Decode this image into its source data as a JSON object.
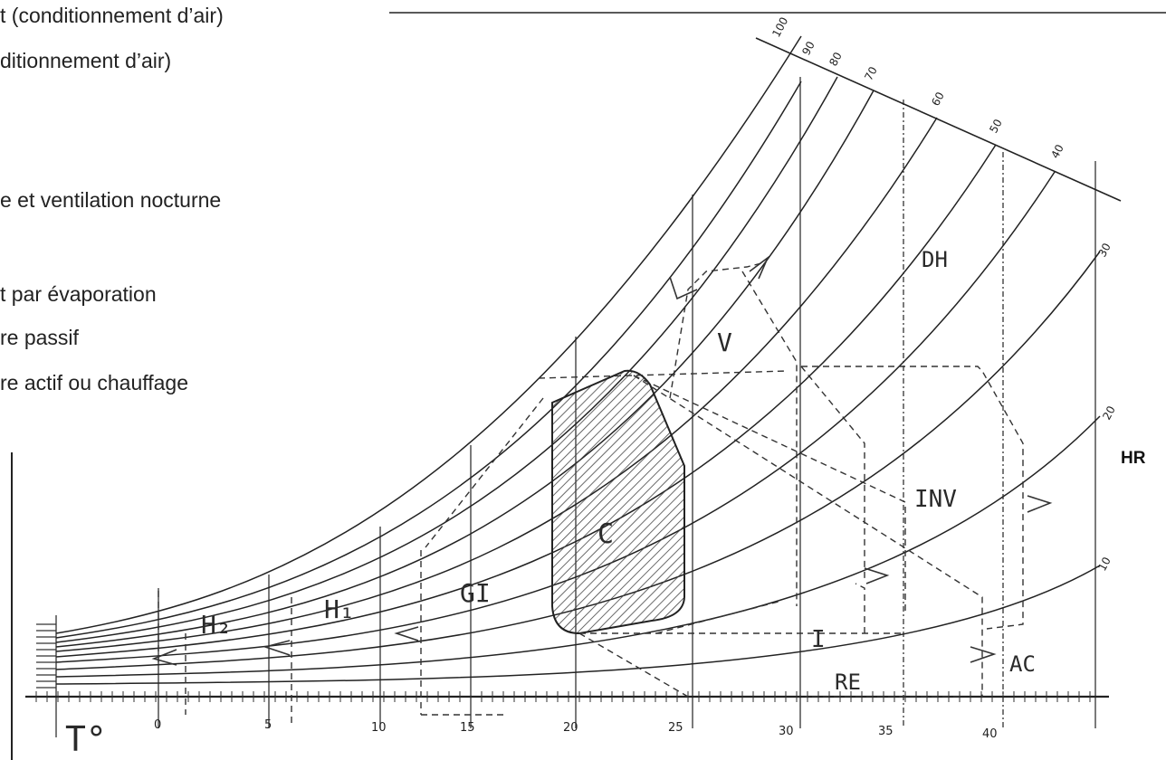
{
  "legend": [
    "t (conditionnement d’air)",
    "ditionnement d’air)",
    "e et ventilation nocturne",
    "t par évaporation",
    "re passif",
    "re actif ou chauffage"
  ],
  "axis": {
    "x_symbol": "T°",
    "y_symbol": "HR",
    "x_ticks": [
      "0",
      "5",
      "10",
      "15",
      "20",
      "25",
      "30",
      "35",
      "40"
    ],
    "rh_top_labels": [
      "100",
      "90",
      "80",
      "70",
      "60",
      "50",
      "40"
    ],
    "rh_right_labels": [
      "30",
      "20",
      "10"
    ]
  },
  "zones": {
    "H2": "H₂",
    "H1": "H₁",
    "GI": "GI",
    "C": "C",
    "V": "V",
    "DH": "DH",
    "INV": "INV",
    "I": "I",
    "RE": "RE",
    "AC": "AC"
  }
}
